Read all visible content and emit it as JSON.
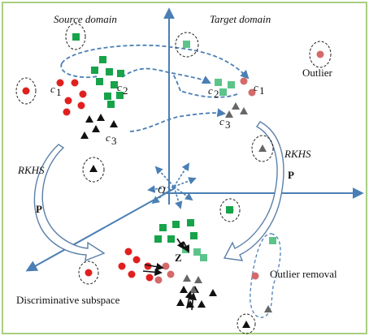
{
  "labels": {
    "source_domain": "Source domain",
    "target_domain": "Target domain",
    "outlier": "Outlier",
    "rkhs_left": "RKHS",
    "rkhs_right": "RKHS",
    "p_left": "P",
    "p_right": "P",
    "origin": "O",
    "z": "Z",
    "outlier_removal": "Outlier removal",
    "discriminative_subspace": "Discriminative subspace",
    "c1_source": "c",
    "c2_source": "c",
    "c3_source": "c",
    "c1_target": "c",
    "c2_target": "c",
    "c3_target": "c",
    "sub1": "1",
    "sub2": "2",
    "sub3": "3"
  },
  "colors": {
    "frame": "#a8cf7f",
    "axis": "#4a7fb5",
    "dashed_link": "#4a7fb5",
    "class_circle_source": "#e0201e",
    "class_square_source": "#17a34a",
    "class_triangle_source": "#111111",
    "class_circle_target": "#d46a6a",
    "class_square_target": "#5cc48a",
    "class_triangle_target": "#666666",
    "arrow_outline": "#5b7fa8",
    "text": "#111111"
  },
  "icons": {
    "circle": "circle-marker",
    "square": "square-marker",
    "triangle": "triangle-marker"
  }
}
